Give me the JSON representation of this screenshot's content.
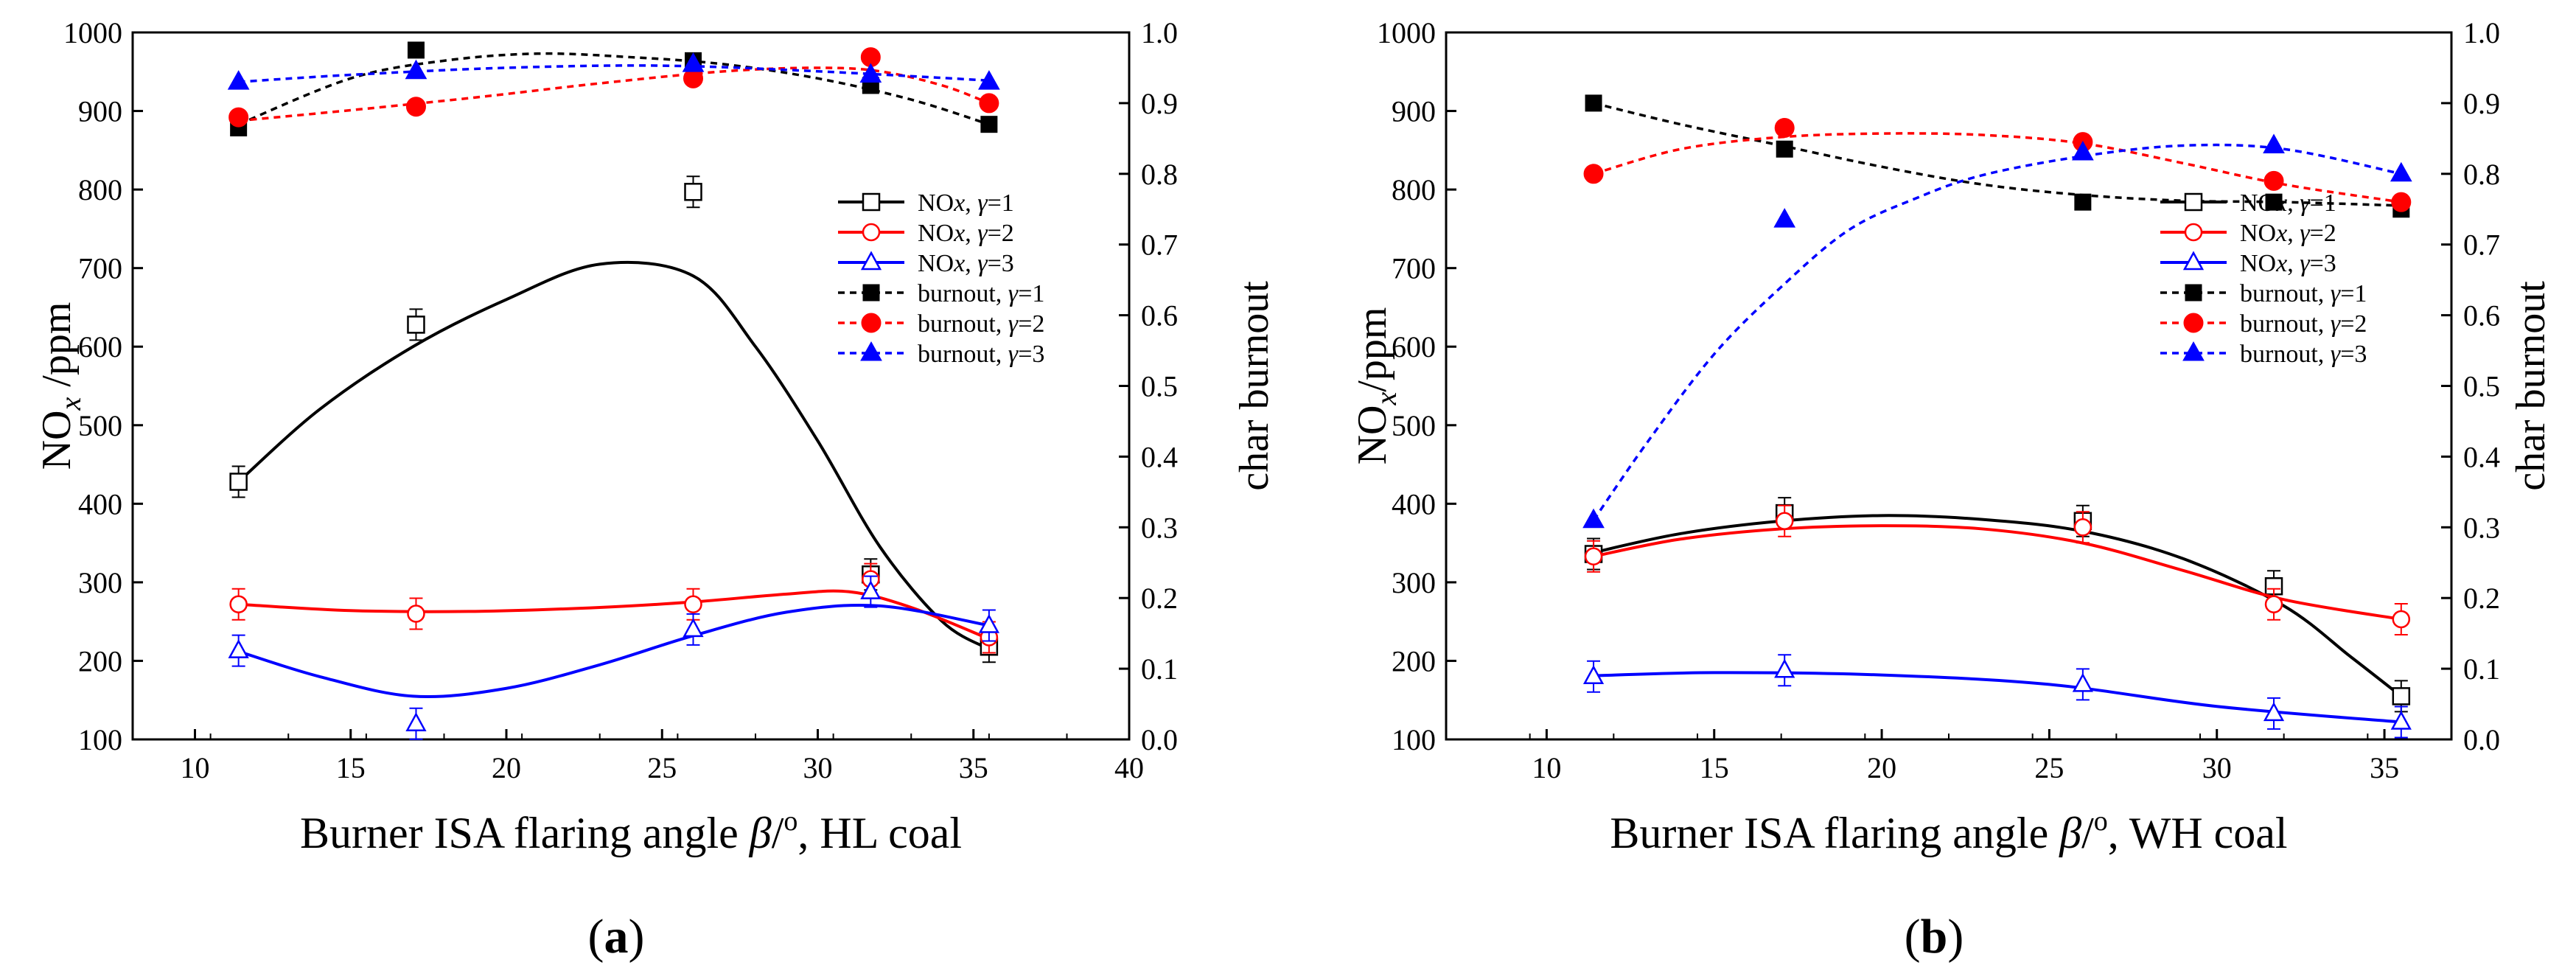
{
  "chart_data": [
    {
      "type": "line",
      "panel_label": "(a)",
      "panel_letter": "a",
      "title": "",
      "xlabel": {
        "prefix": "Burner ISA flaring angle ",
        "symbol": "β",
        "suffix1": "/",
        "sup": "o",
        "suffix2": ",  HL coal"
      },
      "ylabel": {
        "left": "NO",
        "left_sub": "x",
        "left_unit": " /ppm",
        "right": "char burnout"
      },
      "xlim": [
        8,
        40
      ],
      "ylim_left": [
        100,
        1000
      ],
      "ylim_right": [
        0.0,
        1.0
      ],
      "xticks": [
        "10",
        "15",
        "20",
        "25",
        "30",
        "35",
        "40"
      ],
      "yticks_left": [
        "100",
        "200",
        "300",
        "400",
        "500",
        "600",
        "700",
        "800",
        "900",
        "1000"
      ],
      "yticks_right": [
        "0.0",
        "0.1",
        "0.2",
        "0.3",
        "0.4",
        "0.5",
        "0.6",
        "0.7",
        "0.8",
        "0.9",
        "1.0"
      ],
      "legend_position": "center-right",
      "series": [
        {
          "name": "NOx, γ=1",
          "legend_prefix": "NO",
          "legend_italic": "x",
          "legend_mid": ", ",
          "legend_gamma": "γ",
          "legend_suffix": "=1",
          "axis": "left",
          "color": "#000000",
          "marker": "open-square",
          "line": "solid",
          "x": [
            11.4,
            17.1,
            26.0,
            31.7,
            35.5
          ],
          "y": [
            428,
            628,
            797,
            310,
            218
          ],
          "fit": [
            [
              11.4,
              428
            ],
            [
              14,
              520
            ],
            [
              17,
              600
            ],
            [
              20,
              660
            ],
            [
              23,
              705
            ],
            [
              26,
              690
            ],
            [
              28,
              600
            ],
            [
              30,
              480
            ],
            [
              32,
              345
            ],
            [
              34,
              250
            ],
            [
              35.5,
              215
            ]
          ]
        },
        {
          "name": "NOx, γ=2",
          "legend_prefix": "NO",
          "legend_italic": "x",
          "legend_mid": ", ",
          "legend_gamma": "γ",
          "legend_suffix": "=2",
          "axis": "left",
          "color": "#ff0000",
          "marker": "open-circle",
          "line": "solid",
          "x": [
            11.4,
            17.1,
            26.0,
            31.7,
            35.5
          ],
          "y": [
            272,
            260,
            272,
            304,
            230
          ],
          "fit": [
            [
              11.4,
              272
            ],
            [
              15,
              264
            ],
            [
              19,
              263
            ],
            [
              23,
              268
            ],
            [
              26,
              275
            ],
            [
              29,
              285
            ],
            [
              31,
              288
            ],
            [
              33,
              268
            ],
            [
              35.5,
              228
            ]
          ]
        },
        {
          "name": "NOx, γ=3",
          "legend_prefix": "NO",
          "legend_italic": "x",
          "legend_mid": ", ",
          "legend_gamma": "γ",
          "legend_suffix": "=3",
          "axis": "left",
          "color": "#0000ff",
          "marker": "open-triangle",
          "line": "solid",
          "x": [
            11.4,
            17.1,
            26.0,
            31.7,
            35.5
          ],
          "y": [
            213,
            120,
            240,
            288,
            245
          ],
          "fit": [
            [
              11.4,
              212
            ],
            [
              14,
              180
            ],
            [
              17,
              155
            ],
            [
              20,
              165
            ],
            [
              23,
              195
            ],
            [
              26,
              232
            ],
            [
              29,
              262
            ],
            [
              32,
              270
            ],
            [
              35.5,
              245
            ]
          ]
        },
        {
          "name": "burnout, γ=1",
          "legend_prefix": "burnout",
          "legend_italic": "",
          "legend_mid": ", ",
          "legend_gamma": "γ",
          "legend_suffix": "=1",
          "axis": "right",
          "color": "#000000",
          "marker": "filled-square",
          "line": "dashed",
          "x": [
            11.4,
            17.1,
            26.0,
            31.7,
            35.5
          ],
          "y": [
            0.865,
            0.975,
            0.96,
            0.925,
            0.87
          ],
          "fit": [
            [
              11.4,
              0.87
            ],
            [
              15,
              0.935
            ],
            [
              18,
              0.96
            ],
            [
              21,
              0.97
            ],
            [
              24,
              0.965
            ],
            [
              27,
              0.955
            ],
            [
              30,
              0.935
            ],
            [
              33,
              0.905
            ],
            [
              35.5,
              0.87
            ]
          ]
        },
        {
          "name": "burnout, γ=2",
          "legend_prefix": "burnout",
          "legend_italic": "",
          "legend_mid": ", ",
          "legend_gamma": "γ",
          "legend_suffix": "=2",
          "axis": "right",
          "color": "#ff0000",
          "marker": "filled-circle",
          "line": "dashed",
          "x": [
            11.4,
            17.1,
            26.0,
            31.7,
            35.5
          ],
          "y": [
            0.88,
            0.895,
            0.935,
            0.965,
            0.9
          ],
          "fit": [
            [
              11.4,
              0.875
            ],
            [
              15,
              0.89
            ],
            [
              19,
              0.908
            ],
            [
              23,
              0.928
            ],
            [
              27,
              0.945
            ],
            [
              30,
              0.95
            ],
            [
              32,
              0.945
            ],
            [
              34,
              0.925
            ],
            [
              35.5,
              0.9
            ]
          ]
        },
        {
          "name": "burnout, γ=3",
          "legend_prefix": "burnout",
          "legend_italic": "",
          "legend_mid": ", ",
          "legend_gamma": "γ",
          "legend_suffix": "=3",
          "axis": "right",
          "color": "#0000ff",
          "marker": "filled-triangle",
          "line": "dashed",
          "x": [
            11.4,
            17.1,
            26.0,
            31.7,
            35.5
          ],
          "y": [
            0.93,
            0.945,
            0.955,
            0.94,
            0.93
          ],
          "fit": [
            [
              11.4,
              0.93
            ],
            [
              15,
              0.94
            ],
            [
              20,
              0.95
            ],
            [
              25,
              0.953
            ],
            [
              30,
              0.945
            ],
            [
              35.5,
              0.932
            ]
          ]
        }
      ]
    },
    {
      "type": "line",
      "panel_label": "(b)",
      "panel_letter": "b",
      "title": "",
      "xlabel": {
        "prefix": "Burner ISA flaring angle ",
        "symbol": "β",
        "suffix1": "/",
        "sup": "o",
        "suffix2": ", WH coal"
      },
      "ylabel": {
        "left": "NO",
        "left_sub": "x",
        "left_unit": "/ppm",
        "right": "char burnout"
      },
      "xlim": [
        7,
        37
      ],
      "ylim_left": [
        100,
        1000
      ],
      "ylim_right": [
        0.0,
        1.0
      ],
      "xticks": [
        "10",
        "15",
        "20",
        "25",
        "30",
        "35"
      ],
      "yticks_left": [
        "100",
        "200",
        "300",
        "400",
        "500",
        "600",
        "700",
        "800",
        "900",
        "1000"
      ],
      "yticks_right": [
        "0.0",
        "0.1",
        "0.2",
        "0.3",
        "0.4",
        "0.5",
        "0.6",
        "0.7",
        "0.8",
        "0.9",
        "1.0"
      ],
      "legend_position": "center-right",
      "series": [
        {
          "name": "NOx, γ=1",
          "legend_prefix": "NO",
          "legend_italic": "x",
          "legend_mid": ", ",
          "legend_gamma": "γ",
          "legend_suffix": "=1",
          "axis": "left",
          "color": "#000000",
          "marker": "open-square",
          "line": "solid",
          "x": [
            11.4,
            17.1,
            26.0,
            31.7,
            35.5
          ],
          "y": [
            336,
            388,
            378,
            295,
            155
          ],
          "fit": [
            [
              11.4,
              338
            ],
            [
              14,
              362
            ],
            [
              17,
              378
            ],
            [
              20,
              385
            ],
            [
              23,
              380
            ],
            [
              26,
              365
            ],
            [
              29,
              330
            ],
            [
              32,
              270
            ],
            [
              34,
              205
            ],
            [
              35.5,
              155
            ]
          ]
        },
        {
          "name": "NOx, γ=2",
          "legend_prefix": "NO",
          "legend_italic": "x",
          "legend_mid": ", ",
          "legend_gamma": "γ",
          "legend_suffix": "=2",
          "axis": "left",
          "color": "#ff0000",
          "marker": "open-circle",
          "line": "solid",
          "x": [
            11.4,
            17.1,
            26.0,
            31.7,
            35.5
          ],
          "y": [
            333,
            378,
            370,
            272,
            253
          ],
          "fit": [
            [
              11.4,
              333
            ],
            [
              14,
              355
            ],
            [
              17,
              368
            ],
            [
              20,
              372
            ],
            [
              23,
              368
            ],
            [
              26,
              350
            ],
            [
              29,
              315
            ],
            [
              32,
              278
            ],
            [
              35.5,
              253
            ]
          ]
        },
        {
          "name": "NOx, γ=3",
          "legend_prefix": "NO",
          "legend_italic": "x",
          "legend_mid": ", ",
          "legend_gamma": "γ",
          "legend_suffix": "=3",
          "axis": "left",
          "color": "#0000ff",
          "marker": "open-triangle",
          "line": "solid",
          "x": [
            11.4,
            17.1,
            26.0,
            31.7,
            35.5
          ],
          "y": [
            180,
            188,
            170,
            133,
            122
          ],
          "fit": [
            [
              11.4,
              181
            ],
            [
              15,
              185
            ],
            [
              20,
              182
            ],
            [
              25,
              170
            ],
            [
              30,
              142
            ],
            [
              35.5,
              122
            ]
          ]
        },
        {
          "name": "burnout, γ=1",
          "legend_prefix": "burnout",
          "legend_italic": "",
          "legend_mid": ", ",
          "legend_gamma": "γ",
          "legend_suffix": "=1",
          "axis": "right",
          "color": "#000000",
          "marker": "filled-square",
          "line": "dashed",
          "x": [
            11.4,
            17.1,
            26.0,
            31.7,
            35.5
          ],
          "y": [
            0.9,
            0.835,
            0.76,
            0.76,
            0.75
          ],
          "fit": [
            [
              11.4,
              0.9
            ],
            [
              14,
              0.87
            ],
            [
              17,
              0.84
            ],
            [
              20,
              0.81
            ],
            [
              23,
              0.785
            ],
            [
              26,
              0.77
            ],
            [
              29,
              0.762
            ],
            [
              32,
              0.76
            ],
            [
              35.5,
              0.755
            ]
          ]
        },
        {
          "name": "burnout, γ=2",
          "legend_prefix": "burnout",
          "legend_italic": "",
          "legend_mid": ", ",
          "legend_gamma": "γ",
          "legend_suffix": "=2",
          "axis": "right",
          "color": "#ff0000",
          "marker": "filled-circle",
          "line": "dashed",
          "x": [
            11.4,
            17.1,
            26.0,
            31.7,
            35.5
          ],
          "y": [
            0.8,
            0.865,
            0.845,
            0.79,
            0.76
          ],
          "fit": [
            [
              11.4,
              0.8
            ],
            [
              14,
              0.835
            ],
            [
              17,
              0.852
            ],
            [
              20,
              0.857
            ],
            [
              23,
              0.855
            ],
            [
              26,
              0.843
            ],
            [
              29,
              0.815
            ],
            [
              32,
              0.785
            ],
            [
              35.5,
              0.76
            ]
          ]
        },
        {
          "name": "burnout, γ=3",
          "legend_prefix": "burnout",
          "legend_italic": "",
          "legend_mid": ", ",
          "legend_gamma": "γ",
          "legend_suffix": "=3",
          "axis": "right",
          "color": "#0000ff",
          "marker": "filled-triangle",
          "line": "dashed",
          "x": [
            11.4,
            17.1,
            26.0,
            31.7,
            35.5
          ],
          "y": [
            0.31,
            0.735,
            0.83,
            0.84,
            0.8
          ],
          "fit": [
            [
              11.4,
              0.31
            ],
            [
              13,
              0.42
            ],
            [
              15,
              0.545
            ],
            [
              17,
              0.64
            ],
            [
              19,
              0.72
            ],
            [
              21,
              0.765
            ],
            [
              23,
              0.798
            ],
            [
              26,
              0.825
            ],
            [
              29,
              0.84
            ],
            [
              32,
              0.835
            ],
            [
              35.5,
              0.8
            ]
          ]
        }
      ]
    }
  ]
}
